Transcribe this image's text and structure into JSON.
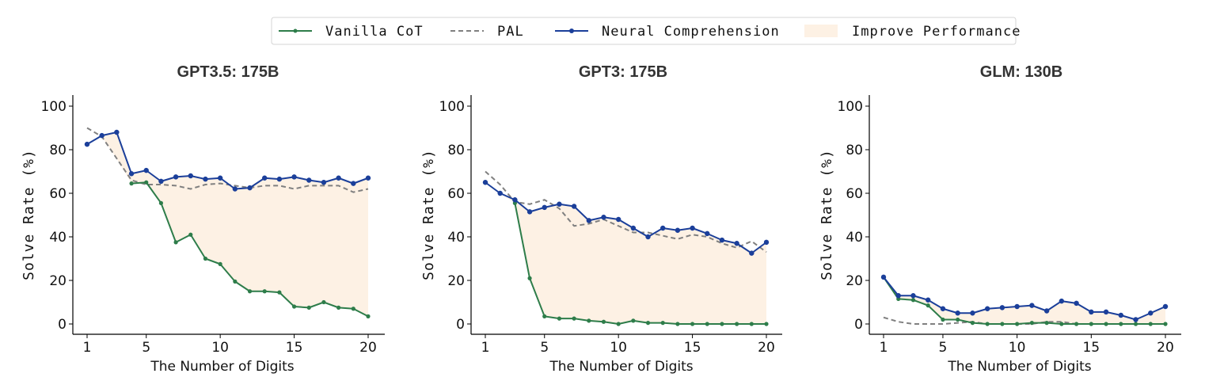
{
  "legend": {
    "items": [
      {
        "label": "Vanilla CoT",
        "kind": "line-marker",
        "color": "#2e7d4a"
      },
      {
        "label": "PAL",
        "kind": "dashed",
        "color": "#808080"
      },
      {
        "label": "Neural Comprehension",
        "kind": "line-marker",
        "color": "#1b3f9a"
      },
      {
        "label": "Improve Performance",
        "kind": "fill",
        "color": "#fdf1e4"
      }
    ],
    "placement": "top-center"
  },
  "chart_data": [
    {
      "type": "line",
      "title": "GPT3.5: 175B",
      "xlabel": "The Number of Digits",
      "ylabel": "Solve Rate (%)",
      "xlim": [
        1,
        20
      ],
      "ylim": [
        0,
        100
      ],
      "xticks": [
        1,
        5,
        10,
        15,
        20
      ],
      "yticks": [
        0,
        20,
        40,
        60,
        80,
        100
      ],
      "x": [
        1,
        2,
        3,
        4,
        5,
        6,
        7,
        8,
        9,
        10,
        11,
        12,
        13,
        14,
        15,
        16,
        17,
        18,
        19,
        20
      ],
      "series": [
        {
          "name": "Vanilla CoT",
          "values": [
            null,
            null,
            null,
            64.5,
            65,
            55.5,
            37.5,
            41,
            30,
            27.5,
            19.5,
            15,
            15,
            14.5,
            8,
            7.5,
            10,
            7.5,
            7,
            3.5
          ]
        },
        {
          "name": "PAL",
          "values": [
            90,
            86,
            76,
            66,
            64,
            64,
            63.5,
            62,
            64,
            64.5,
            63.5,
            62.5,
            63.5,
            63.5,
            62,
            63.5,
            63.5,
            63.5,
            60.5,
            62
          ]
        },
        {
          "name": "Neural Comprehension",
          "values": [
            82.5,
            86.5,
            88,
            69,
            70.5,
            65.5,
            67.5,
            68,
            66.5,
            67,
            62,
            62.5,
            67,
            66.5,
            67.5,
            66,
            65,
            67,
            64.5,
            67
          ]
        }
      ],
      "fill": {
        "name": "Improve Performance",
        "from": [
          1,
          20
        ]
      }
    },
    {
      "type": "line",
      "title": "GPT3: 175B",
      "xlabel": "The Number of Digits",
      "ylabel": "Solve Rate (%)",
      "xlim": [
        1,
        20
      ],
      "ylim": [
        0,
        100
      ],
      "xticks": [
        1,
        5,
        10,
        15,
        20
      ],
      "yticks": [
        0,
        20,
        40,
        60,
        80,
        100
      ],
      "x": [
        1,
        2,
        3,
        4,
        5,
        6,
        7,
        8,
        9,
        10,
        11,
        12,
        13,
        14,
        15,
        16,
        17,
        18,
        19,
        20
      ],
      "series": [
        {
          "name": "Vanilla CoT",
          "values": [
            null,
            null,
            55.5,
            21,
            3.5,
            2.5,
            2.5,
            1.5,
            1,
            0,
            1.5,
            0.5,
            0.5,
            0,
            0,
            0,
            0,
            0,
            0,
            0
          ]
        },
        {
          "name": "PAL",
          "values": [
            70,
            64,
            56,
            55,
            57,
            53,
            45,
            46,
            48,
            45,
            42,
            42,
            40.5,
            39,
            41,
            40,
            37,
            35,
            38,
            33
          ]
        },
        {
          "name": "Neural Comprehension",
          "values": [
            65,
            60,
            57,
            51.5,
            53.5,
            55,
            54,
            47.5,
            49,
            48,
            44,
            40,
            44,
            43,
            44,
            41.5,
            38.5,
            37,
            32.5,
            37.5
          ]
        }
      ],
      "fill": {
        "name": "Improve Performance",
        "from": [
          1,
          20
        ]
      }
    },
    {
      "type": "line",
      "title": "GLM: 130B",
      "xlabel": "The Number of Digits",
      "ylabel": "Solve Rate (%)",
      "xlim": [
        1,
        20
      ],
      "ylim": [
        0,
        100
      ],
      "xticks": [
        1,
        5,
        10,
        15,
        20
      ],
      "yticks": [
        0,
        20,
        40,
        60,
        80,
        100
      ],
      "x": [
        1,
        2,
        3,
        4,
        5,
        6,
        7,
        8,
        9,
        10,
        11,
        12,
        13,
        14,
        15,
        16,
        17,
        18,
        19,
        20
      ],
      "series": [
        {
          "name": "Vanilla CoT",
          "values": [
            21.5,
            11.5,
            11,
            8.5,
            2,
            2,
            0.5,
            0,
            0,
            0,
            0.5,
            0.5,
            0,
            0,
            0,
            0,
            0,
            0,
            0,
            0
          ]
        },
        {
          "name": "PAL",
          "values": [
            3,
            1,
            0,
            0,
            0,
            0.5,
            1,
            0,
            0,
            0,
            0,
            1,
            1,
            0,
            0,
            0,
            0,
            0,
            0,
            0
          ]
        },
        {
          "name": "Neural Comprehension",
          "values": [
            21.5,
            13,
            13,
            11,
            7,
            5,
            5,
            7,
            7.5,
            8,
            8.5,
            6,
            10.5,
            9.5,
            5.5,
            5.5,
            4,
            2,
            5,
            8
          ]
        }
      ],
      "fill": {
        "name": "Improve Performance",
        "from": [
          1,
          20
        ]
      }
    }
  ]
}
